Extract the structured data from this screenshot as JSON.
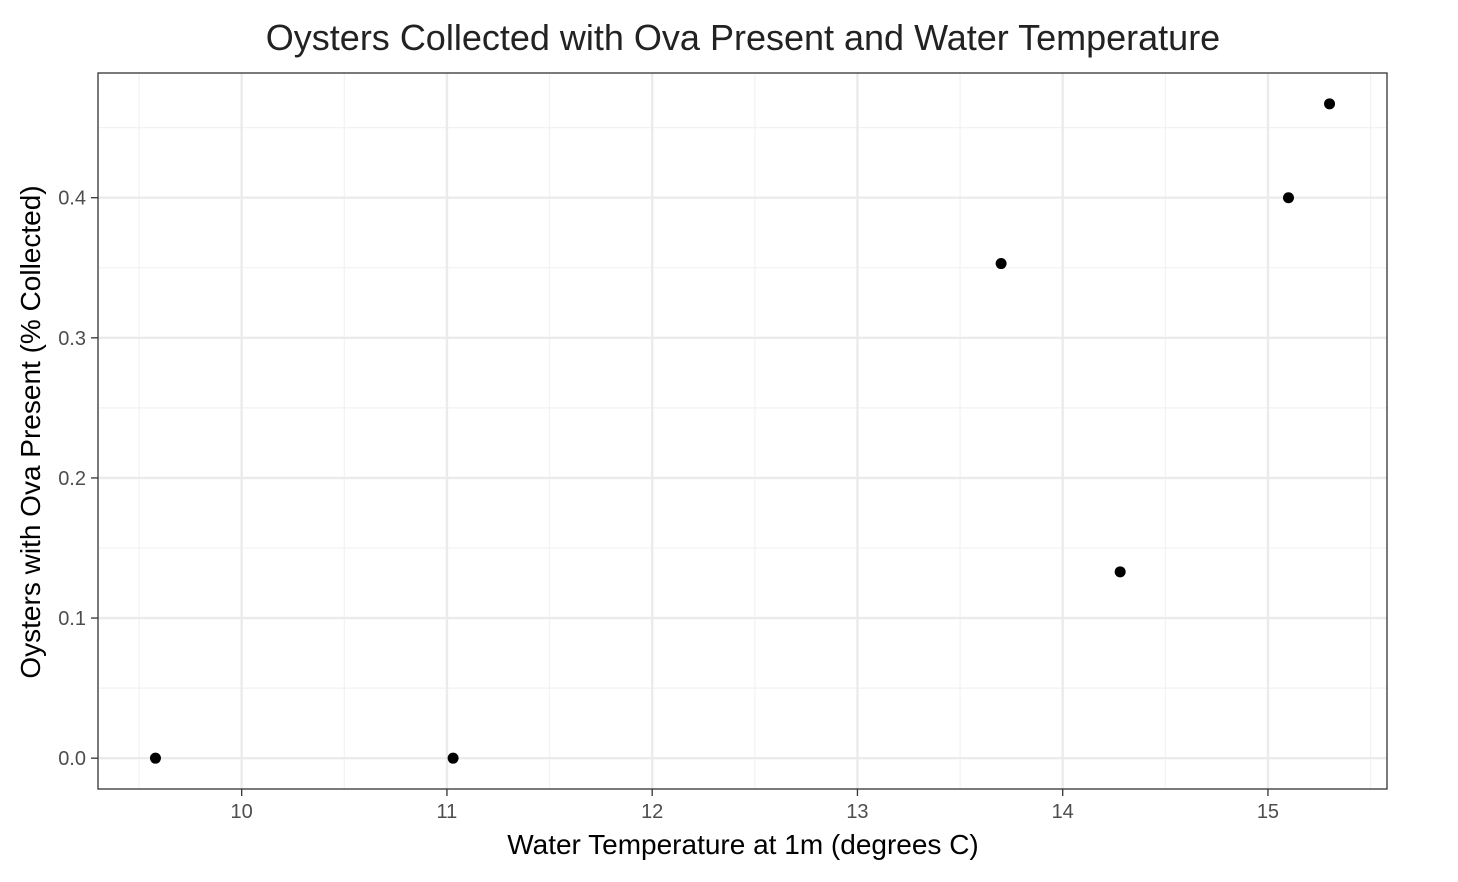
{
  "chart_data": {
    "type": "scatter",
    "title": "Oysters Collected with Ova Present and Water Temperature",
    "xlabel": "Water Temperature at 1m (degrees C)",
    "ylabel": "Oysters with Ova Present (% Collected)",
    "xlim": [
      9.3,
      15.58
    ],
    "ylim": [
      -0.022,
      0.489
    ],
    "x_ticks": [
      10,
      11,
      12,
      13,
      14,
      15
    ],
    "x_tick_labels": [
      "10",
      "11",
      "12",
      "13",
      "14",
      "15"
    ],
    "y_ticks": [
      0.0,
      0.1,
      0.2,
      0.3,
      0.4
    ],
    "y_tick_labels": [
      "0.0",
      "0.1",
      "0.2",
      "0.3",
      "0.4"
    ],
    "grid": true,
    "legend": "none",
    "point_color": "#000000",
    "points": [
      {
        "x": 9.58,
        "y": 0.0
      },
      {
        "x": 11.03,
        "y": 0.0
      },
      {
        "x": 13.7,
        "y": 0.353
      },
      {
        "x": 14.28,
        "y": 0.133
      },
      {
        "x": 15.1,
        "y": 0.4
      },
      {
        "x": 15.3,
        "y": 0.467
      }
    ]
  }
}
